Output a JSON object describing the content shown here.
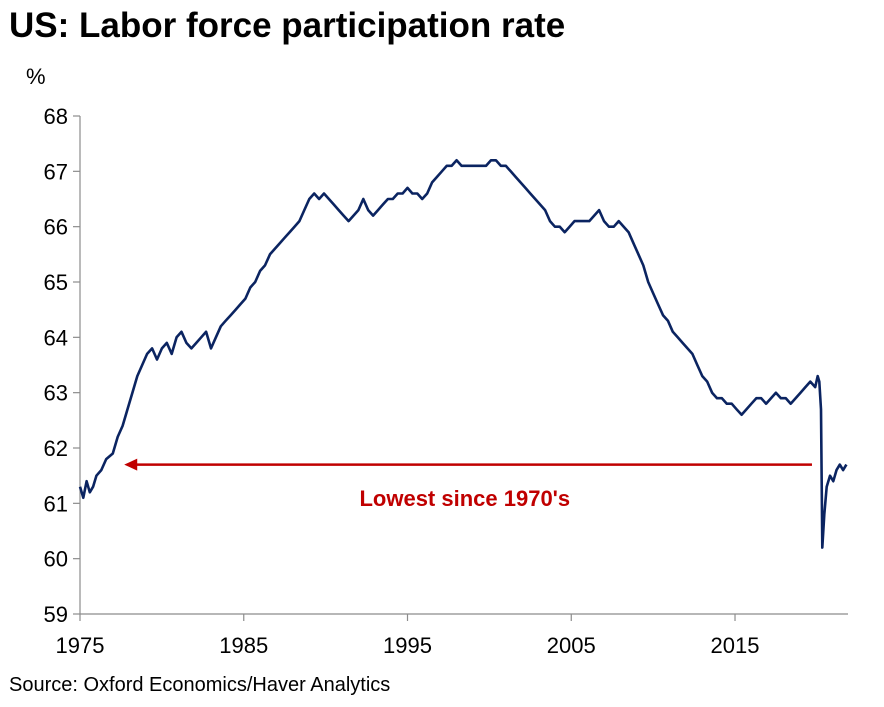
{
  "chart_data": {
    "type": "line",
    "title": "US: Labor force participation rate",
    "ylabel": "%",
    "xlabel": "",
    "xlim": [
      1975,
      2021.9
    ],
    "ylim": [
      59,
      68
    ],
    "yticks": [
      59,
      60,
      61,
      62,
      63,
      64,
      65,
      66,
      67,
      68
    ],
    "xticks": [
      1975,
      1985,
      1995,
      2005,
      2015
    ],
    "grid": false,
    "legend": "none",
    "colors": {
      "line": "#0b2461",
      "annotation": "#c00000"
    },
    "series": [
      {
        "x": [
          1975.0,
          1975.2,
          1975.4,
          1975.6,
          1975.8,
          1976.0,
          1976.3,
          1976.6,
          1977.0,
          1977.3,
          1977.6,
          1977.9,
          1978.2,
          1978.5,
          1978.8,
          1979.1,
          1979.4,
          1979.7,
          1980.0,
          1980.3,
          1980.6,
          1980.9,
          1981.2,
          1981.5,
          1981.8,
          1982.1,
          1982.4,
          1982.7,
          1983.0,
          1983.3,
          1983.6,
          1983.9,
          1984.2,
          1984.5,
          1984.8,
          1985.1,
          1985.4,
          1985.7,
          1986.0,
          1986.3,
          1986.6,
          1986.9,
          1987.2,
          1987.5,
          1987.8,
          1988.1,
          1988.4,
          1988.7,
          1989.0,
          1989.3,
          1989.6,
          1989.9,
          1990.2,
          1990.5,
          1990.8,
          1991.1,
          1991.4,
          1991.7,
          1992.0,
          1992.3,
          1992.6,
          1992.9,
          1993.2,
          1993.5,
          1993.8,
          1994.1,
          1994.4,
          1994.7,
          1995.0,
          1995.3,
          1995.6,
          1995.9,
          1996.2,
          1996.5,
          1996.8,
          1997.1,
          1997.4,
          1997.7,
          1998.0,
          1998.3,
          1998.6,
          1998.9,
          1999.2,
          1999.5,
          1999.8,
          2000.1,
          2000.4,
          2000.7,
          2001.0,
          2001.3,
          2001.6,
          2001.9,
          2002.2,
          2002.5,
          2002.8,
          2003.1,
          2003.4,
          2003.7,
          2004.0,
          2004.3,
          2004.6,
          2004.9,
          2005.2,
          2005.5,
          2005.8,
          2006.1,
          2006.4,
          2006.7,
          2007.0,
          2007.3,
          2007.6,
          2007.9,
          2008.2,
          2008.5,
          2008.8,
          2009.1,
          2009.4,
          2009.7,
          2010.0,
          2010.3,
          2010.6,
          2010.9,
          2011.2,
          2011.5,
          2011.8,
          2012.1,
          2012.4,
          2012.7,
          2013.0,
          2013.3,
          2013.6,
          2013.9,
          2014.2,
          2014.5,
          2014.8,
          2015.1,
          2015.4,
          2015.7,
          2016.0,
          2016.3,
          2016.6,
          2016.9,
          2017.2,
          2017.5,
          2017.8,
          2018.1,
          2018.4,
          2018.7,
          2019.0,
          2019.3,
          2019.6,
          2019.9,
          2020.05,
          2020.15,
          2020.25,
          2020.33,
          2020.45,
          2020.6,
          2020.8,
          2021.0,
          2021.2,
          2021.4,
          2021.6,
          2021.8
        ],
        "values": [
          61.3,
          61.1,
          61.4,
          61.2,
          61.3,
          61.5,
          61.6,
          61.8,
          61.9,
          62.2,
          62.4,
          62.7,
          63.0,
          63.3,
          63.5,
          63.7,
          63.8,
          63.6,
          63.8,
          63.9,
          63.7,
          64.0,
          64.1,
          63.9,
          63.8,
          63.9,
          64.0,
          64.1,
          63.8,
          64.0,
          64.2,
          64.3,
          64.4,
          64.5,
          64.6,
          64.7,
          64.9,
          65.0,
          65.2,
          65.3,
          65.5,
          65.6,
          65.7,
          65.8,
          65.9,
          66.0,
          66.1,
          66.3,
          66.5,
          66.6,
          66.5,
          66.6,
          66.5,
          66.4,
          66.3,
          66.2,
          66.1,
          66.2,
          66.3,
          66.5,
          66.3,
          66.2,
          66.3,
          66.4,
          66.5,
          66.5,
          66.6,
          66.6,
          66.7,
          66.6,
          66.6,
          66.5,
          66.6,
          66.8,
          66.9,
          67.0,
          67.1,
          67.1,
          67.2,
          67.1,
          67.1,
          67.1,
          67.1,
          67.1,
          67.1,
          67.2,
          67.2,
          67.1,
          67.1,
          67.0,
          66.9,
          66.8,
          66.7,
          66.6,
          66.5,
          66.4,
          66.3,
          66.1,
          66.0,
          66.0,
          65.9,
          66.0,
          66.1,
          66.1,
          66.1,
          66.1,
          66.2,
          66.3,
          66.1,
          66.0,
          66.0,
          66.1,
          66.0,
          65.9,
          65.7,
          65.5,
          65.3,
          65.0,
          64.8,
          64.6,
          64.4,
          64.3,
          64.1,
          64.0,
          63.9,
          63.8,
          63.7,
          63.5,
          63.3,
          63.2,
          63.0,
          62.9,
          62.9,
          62.8,
          62.8,
          62.7,
          62.6,
          62.7,
          62.8,
          62.9,
          62.9,
          62.8,
          62.9,
          63.0,
          62.9,
          62.9,
          62.8,
          62.9,
          63.0,
          63.1,
          63.2,
          63.1,
          63.3,
          63.2,
          62.7,
          60.2,
          60.8,
          61.3,
          61.5,
          61.4,
          61.6,
          61.7,
          61.6,
          61.7
        ]
      }
    ],
    "annotation": {
      "text": "Lowest since 1970's",
      "arrow_from_x": 2019.7,
      "arrow_to_x": 1977.7,
      "arrow_y": 61.7,
      "text_x": 1998.5,
      "text_y": 61.1
    }
  },
  "title": "US: Labor force participation rate",
  "unit": "%",
  "source": "Source: Oxford Economics/Haver Analytics"
}
